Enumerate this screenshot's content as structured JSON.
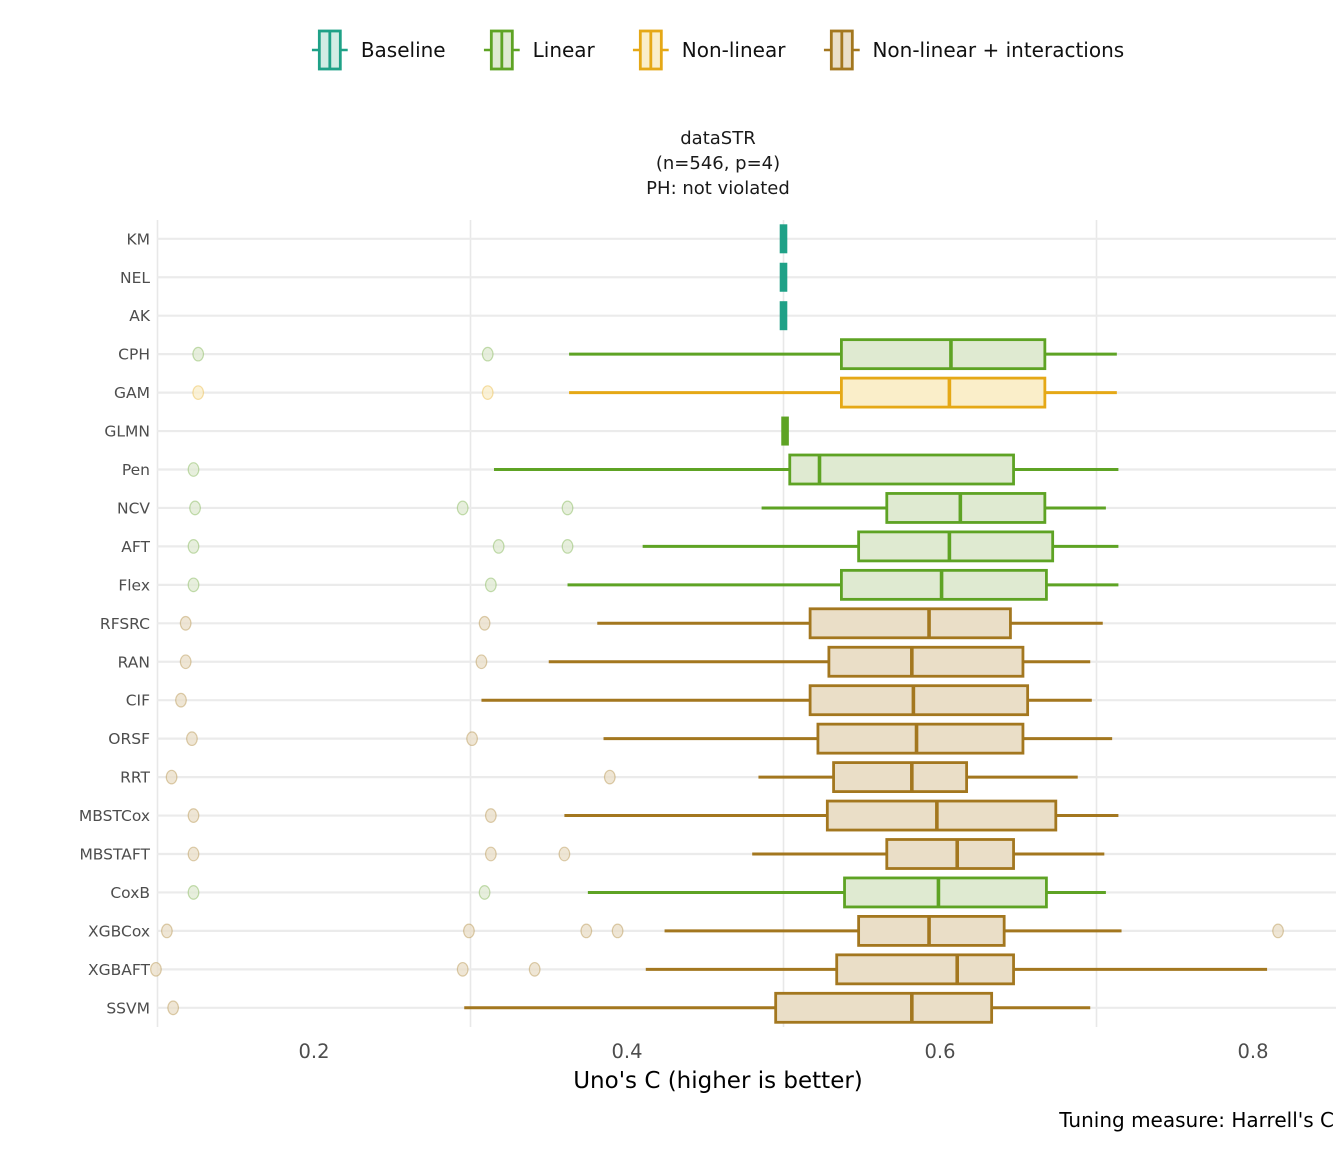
{
  "legend": {
    "items": [
      {
        "label": "Baseline",
        "stroke": "#1fa187",
        "fill": "#d2ece4"
      },
      {
        "label": "Linear",
        "stroke": "#5ea324",
        "fill": "#dfead1"
      },
      {
        "label": "Non-linear",
        "stroke": "#e5a816",
        "fill": "#faeec9"
      },
      {
        "label": "Non-linear + interactions",
        "stroke": "#a3771f",
        "fill": "#eadec7"
      }
    ]
  },
  "title": {
    "line1": "dataSTR",
    "line2": "(n=546, p=4)",
    "line3": "PH: not violated"
  },
  "axis": {
    "x_label": "Uno's C (higher is better)"
  },
  "caption": "Tuning measure: Harrell's C",
  "chart_data": {
    "type": "boxplot-horizontal",
    "title": "dataSTR (n=546, p=4) PH: not violated",
    "xlabel": "Uno's C (higher is better)",
    "x_ticks": [
      "0.2",
      "0.4",
      "0.6",
      "0.8"
    ],
    "x_tick_values": [
      0.2,
      0.4,
      0.6,
      0.8
    ],
    "x_range": [
      0.1,
      0.853
    ],
    "minor_gridlines": [
      0.1,
      0.3,
      0.5,
      0.7
    ],
    "legend_position": "top",
    "grid": "horizontal rows + vertical minor",
    "groups": {
      "Baseline": {
        "stroke": "#1fa187",
        "fill": "#d2ece4"
      },
      "Linear": {
        "stroke": "#5ea324",
        "fill": "#dfead1"
      },
      "Non-linear": {
        "stroke": "#e5a816",
        "fill": "#faeec9"
      },
      "Non-linear + interactions": {
        "stroke": "#a3771f",
        "fill": "#eadec7"
      }
    },
    "rows": [
      {
        "model": "KM",
        "group": "Baseline",
        "degenerate": true,
        "value": 0.5
      },
      {
        "model": "NEL",
        "group": "Baseline",
        "degenerate": true,
        "value": 0.5
      },
      {
        "model": "AK",
        "group": "Baseline",
        "degenerate": true,
        "value": 0.5
      },
      {
        "model": "CPH",
        "group": "Linear",
        "whisker_low": 0.363,
        "q1": 0.537,
        "median": 0.607,
        "q3": 0.667,
        "whisker_high": 0.713,
        "outliers": [
          0.126,
          0.311
        ]
      },
      {
        "model": "GAM",
        "group": "Non-linear",
        "whisker_low": 0.363,
        "q1": 0.537,
        "median": 0.606,
        "q3": 0.667,
        "whisker_high": 0.713,
        "outliers": [
          0.126,
          0.311
        ]
      },
      {
        "model": "GLMN",
        "group": "Linear",
        "degenerate": true,
        "value": 0.501
      },
      {
        "model": "Pen",
        "group": "Linear",
        "whisker_low": 0.315,
        "q1": 0.504,
        "median": 0.523,
        "q3": 0.647,
        "whisker_high": 0.714,
        "outliers": [
          0.123
        ]
      },
      {
        "model": "NCV",
        "group": "Linear",
        "whisker_low": 0.486,
        "q1": 0.566,
        "median": 0.613,
        "q3": 0.667,
        "whisker_high": 0.706,
        "outliers": [
          0.124,
          0.295,
          0.362
        ]
      },
      {
        "model": "AFT",
        "group": "Linear",
        "whisker_low": 0.41,
        "q1": 0.548,
        "median": 0.606,
        "q3": 0.672,
        "whisker_high": 0.714,
        "outliers": [
          0.123,
          0.318,
          0.362
        ]
      },
      {
        "model": "Flex",
        "group": "Linear",
        "whisker_low": 0.362,
        "q1": 0.537,
        "median": 0.601,
        "q3": 0.668,
        "whisker_high": 0.714,
        "outliers": [
          0.123,
          0.313
        ]
      },
      {
        "model": "RFSRC",
        "group": "Non-linear + interactions",
        "whisker_low": 0.381,
        "q1": 0.517,
        "median": 0.593,
        "q3": 0.645,
        "whisker_high": 0.704,
        "outliers": [
          0.118,
          0.309
        ]
      },
      {
        "model": "RAN",
        "group": "Non-linear + interactions",
        "whisker_low": 0.35,
        "q1": 0.529,
        "median": 0.582,
        "q3": 0.653,
        "whisker_high": 0.696,
        "outliers": [
          0.118,
          0.307
        ]
      },
      {
        "model": "CIF",
        "group": "Non-linear + interactions",
        "whisker_low": 0.307,
        "q1": 0.517,
        "median": 0.583,
        "q3": 0.656,
        "whisker_high": 0.697,
        "outliers": [
          0.115
        ]
      },
      {
        "model": "ORSF",
        "group": "Non-linear + interactions",
        "whisker_low": 0.385,
        "q1": 0.522,
        "median": 0.585,
        "q3": 0.653,
        "whisker_high": 0.71,
        "outliers": [
          0.122,
          0.301
        ]
      },
      {
        "model": "RRT",
        "group": "Non-linear + interactions",
        "whisker_low": 0.484,
        "q1": 0.532,
        "median": 0.582,
        "q3": 0.617,
        "whisker_high": 0.688,
        "outliers": [
          0.109,
          0.389
        ]
      },
      {
        "model": "MBSTCox",
        "group": "Non-linear + interactions",
        "whisker_low": 0.36,
        "q1": 0.528,
        "median": 0.598,
        "q3": 0.674,
        "whisker_high": 0.714,
        "outliers": [
          0.123,
          0.313
        ]
      },
      {
        "model": "MBSTAFT",
        "group": "Non-linear + interactions",
        "whisker_low": 0.48,
        "q1": 0.566,
        "median": 0.611,
        "q3": 0.647,
        "whisker_high": 0.705,
        "outliers": [
          0.123,
          0.313,
          0.36
        ]
      },
      {
        "model": "CoxB",
        "group": "Linear",
        "whisker_low": 0.375,
        "q1": 0.539,
        "median": 0.599,
        "q3": 0.668,
        "whisker_high": 0.706,
        "outliers": [
          0.123,
          0.309
        ]
      },
      {
        "model": "XGBCox",
        "group": "Non-linear + interactions",
        "whisker_low": 0.424,
        "q1": 0.548,
        "median": 0.593,
        "q3": 0.641,
        "whisker_high": 0.716,
        "outliers": [
          0.106,
          0.299,
          0.374,
          0.394,
          0.816
        ]
      },
      {
        "model": "XGBAFT",
        "group": "Non-linear + interactions",
        "whisker_low": 0.412,
        "q1": 0.534,
        "median": 0.611,
        "q3": 0.647,
        "whisker_high": 0.809,
        "outliers": [
          0.099,
          0.295,
          0.341
        ]
      },
      {
        "model": "SSVM",
        "group": "Non-linear + interactions",
        "whisker_low": 0.296,
        "q1": 0.495,
        "median": 0.582,
        "q3": 0.633,
        "whisker_high": 0.696,
        "outliers": [
          0.11
        ]
      }
    ]
  }
}
